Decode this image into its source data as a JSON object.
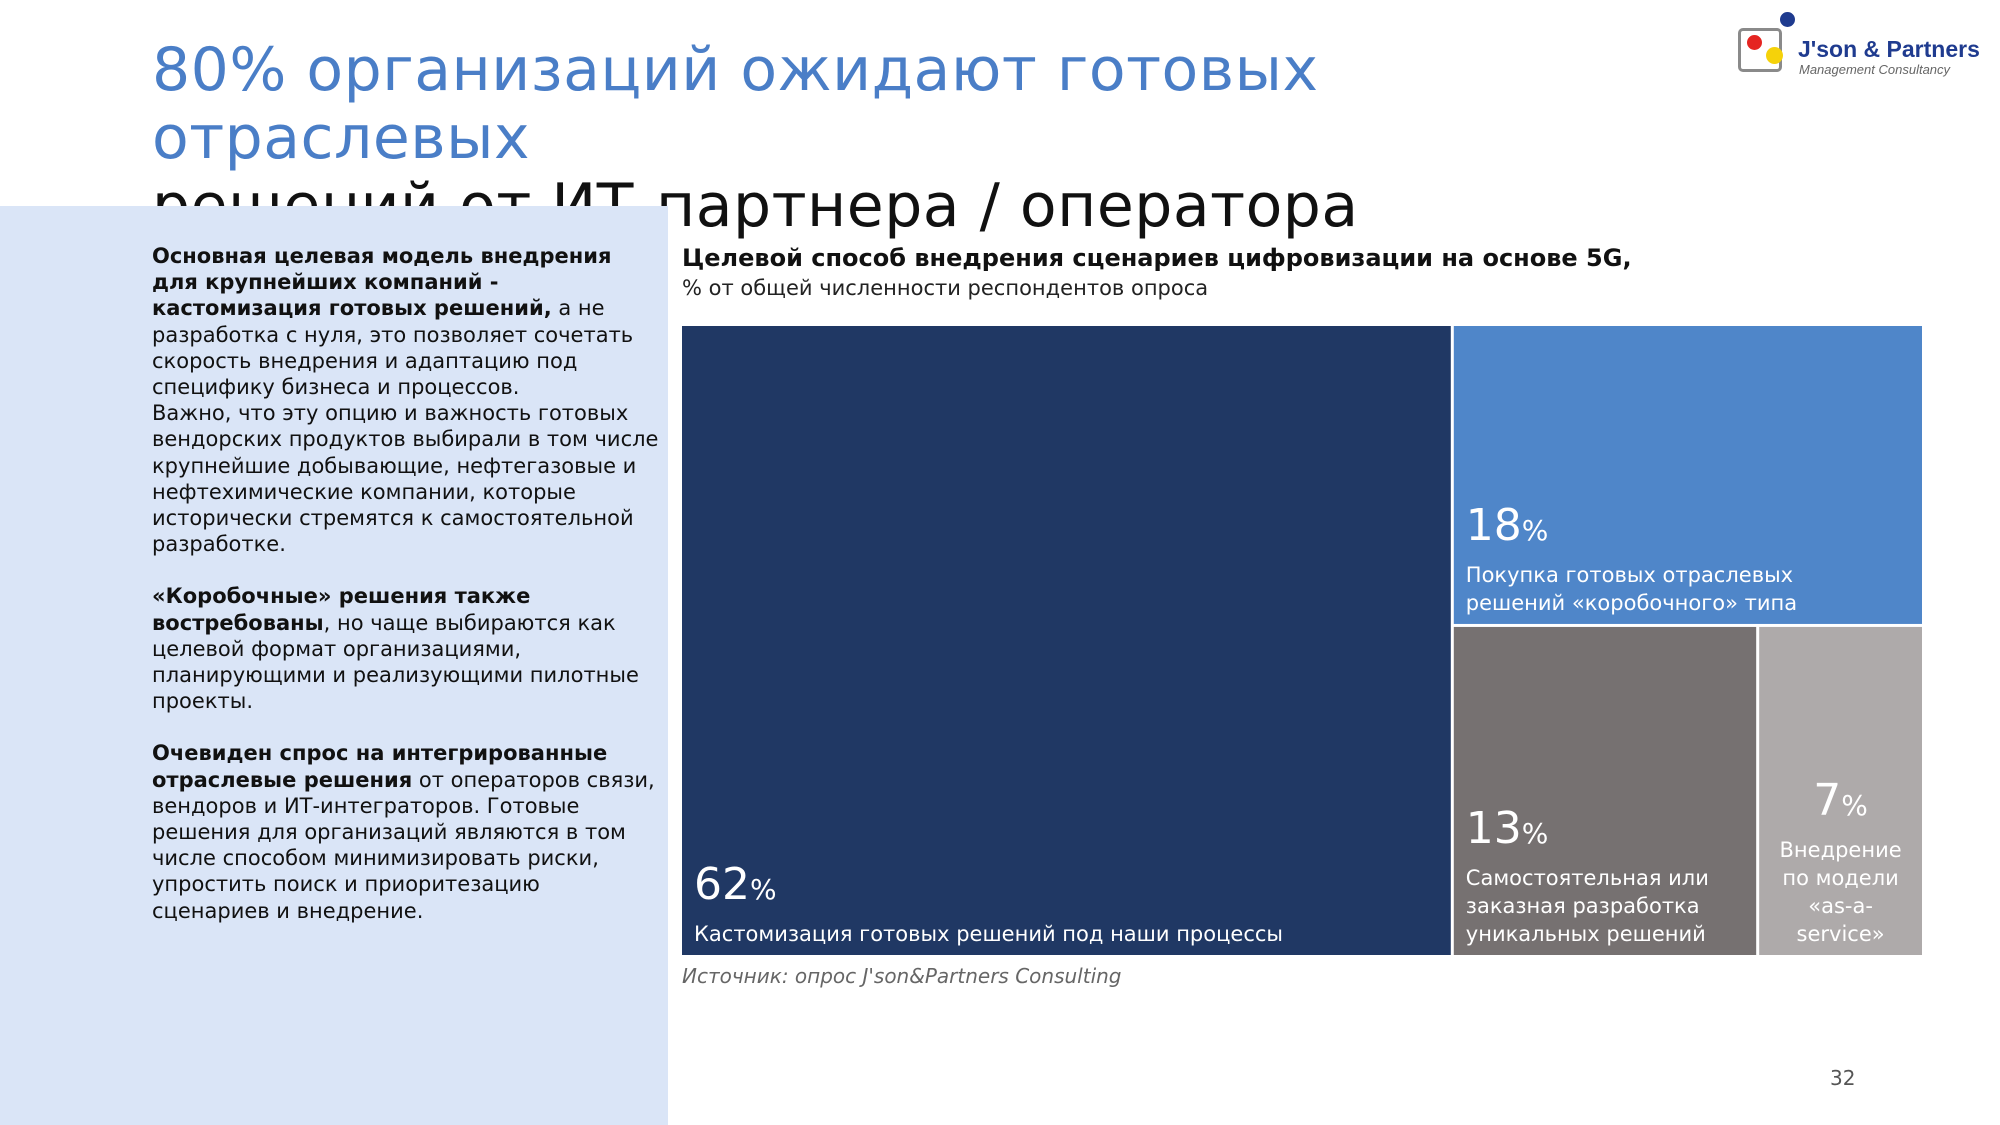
{
  "header": {
    "title_line1": "80% организаций ожидают готовых отраслевых",
    "title_line2": "решений от ИТ-партнера / оператора"
  },
  "logo": {
    "name": "J'son & Partners",
    "subtitle": "Management Consultancy"
  },
  "left_text": {
    "p1_bold": "Основная целевая модель внедрения для крупнейших компаний - кастомизация готовых решений,",
    "p1_rest": " а не разработка с нуля, это позволяет сочетать скорость внедрения и адаптацию под специфику бизнеса и процессов.",
    "p1_second": "Важно, что эту опцию и важность готовых вендорских продуктов выбирали в том числе крупнейшие добывающие, нефтегазовые и нефтехимические компании, которые исторически стремятся к самостоятельной разработке.",
    "p2_bold": "«Коробочные» решения также востребованы",
    "p2_rest": ", но чаще выбираются как целевой формат организациями, планирующими и реализующими пилотные проекты.",
    "p3_bold": "Очевиден спрос на интегрированные отраслевые решения",
    "p3_rest": " от операторов связи, вендоров и ИТ-интеграторов. Готовые решения для организаций являются в том числе способом минимизировать риски, упростить поиск и приоритезацию сценариев и внедрение."
  },
  "chart_data": {
    "type": "treemap",
    "title": "Целевой способ внедрения сценариев цифровизации на основе 5G,",
    "subtitle": "% от общей численности респондентов опроса",
    "unit": "%",
    "items": [
      {
        "value": 62,
        "label": "Кастомизация готовых решений под наши процессы",
        "color": "#203864"
      },
      {
        "value": 18,
        "label": "Покупка готовых отраслевых решений «коробочного» типа",
        "color": "#4f86c9"
      },
      {
        "value": 13,
        "label": "Самостоятельная или заказная разработка уникальных решений",
        "color": "#767171"
      },
      {
        "value": 7,
        "label": "Внедрение по модели «as-a-service»",
        "color": "#aeaaaa"
      }
    ]
  },
  "source": "Источник: опрос J'son&Partners Consulting",
  "page_number": "32"
}
